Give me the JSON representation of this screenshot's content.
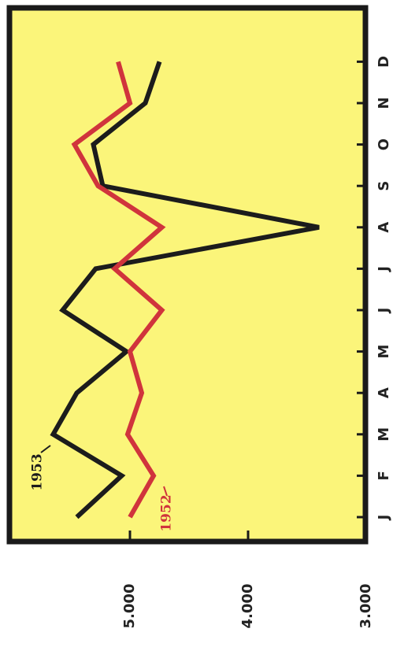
{
  "chart_data": {
    "type": "line",
    "categories": [
      "J",
      "F",
      "M",
      "A",
      "M",
      "J",
      "J",
      "A",
      "S",
      "O",
      "N",
      "D"
    ],
    "series": [
      {
        "name": "1953",
        "color": "#1c1c1c",
        "values": [
          5.45,
          5.07,
          5.65,
          5.45,
          5.03,
          5.57,
          5.29,
          3.4,
          5.23,
          5.31,
          4.87,
          4.75
        ]
      },
      {
        "name": "1952",
        "color": "#d0343c",
        "values": [
          5.0,
          4.8,
          5.02,
          4.9,
          5.0,
          4.73,
          5.13,
          4.73,
          5.27,
          5.47,
          5.0,
          5.1
        ]
      }
    ],
    "ylim": [
      6,
      3
    ],
    "yticks": [
      {
        "value": 5,
        "label": "5.000"
      },
      {
        "value": 4,
        "label": "4.000"
      },
      {
        "value": 3,
        "label": "3.000"
      }
    ],
    "background": "#fbf57a"
  }
}
